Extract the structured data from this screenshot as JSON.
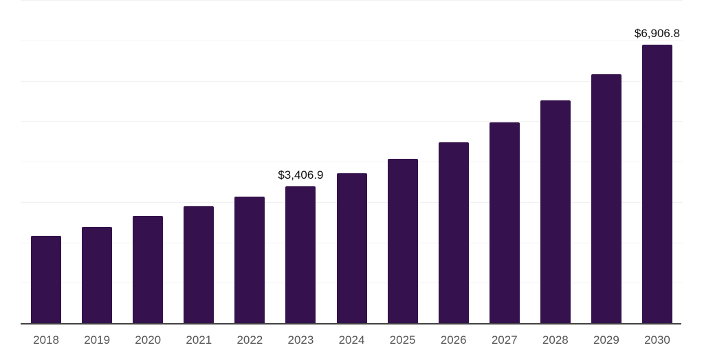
{
  "chart_data": {
    "type": "bar",
    "title": "",
    "xlabel": "",
    "ylabel": "",
    "categories": [
      "2018",
      "2019",
      "2020",
      "2021",
      "2022",
      "2023",
      "2024",
      "2025",
      "2026",
      "2027",
      "2028",
      "2029",
      "2030"
    ],
    "values": [
      2180,
      2400,
      2670,
      2910,
      3150,
      3406.9,
      3725,
      4080,
      4490,
      4990,
      5535,
      6180,
      6906.8
    ],
    "ylim": [
      0,
      8000
    ],
    "gridline_step": 1000,
    "grid": "horizontal",
    "legend": "none",
    "y_axis_tick_labels_visible": false,
    "data_labels": [
      {
        "index": 5,
        "category": "2023",
        "text": "$3,406.9",
        "value": 3406.9
      },
      {
        "index": 12,
        "category": "2030",
        "text": "$6,906.8",
        "value": 6906.8
      }
    ],
    "colors": {
      "bar": "#35124d",
      "gridline": "#f1f1f1",
      "axis_line": "#424242",
      "tick_label": "#565656",
      "data_label": "#111111",
      "background": "#ffffff"
    }
  }
}
